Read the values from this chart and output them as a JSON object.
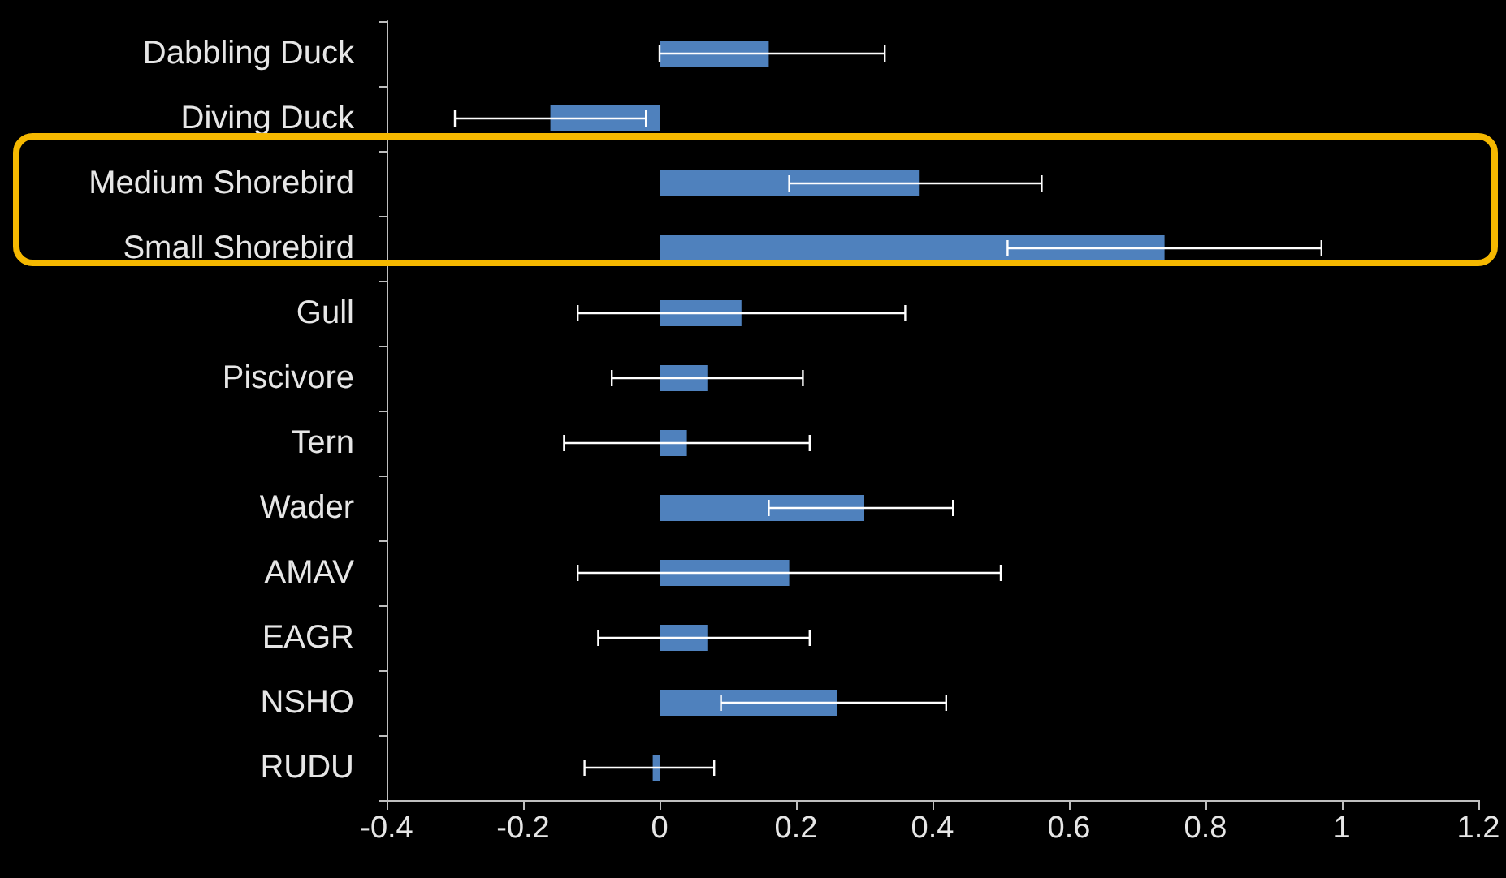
{
  "chart_data": {
    "type": "bar",
    "orientation": "horizontal",
    "categories": [
      "Dabbling Duck",
      "Diving Duck",
      "Medium Shorebird",
      "Small Shorebird",
      "Gull",
      "Piscivore",
      "Tern",
      "Wader",
      "AMAV",
      "EAGR",
      "NSHO",
      "RUDU"
    ],
    "values": [
      0.16,
      -0.16,
      0.38,
      0.74,
      0.12,
      0.07,
      0.04,
      0.3,
      0.19,
      0.07,
      0.26,
      -0.01
    ],
    "errors": [
      [
        0.0,
        0.33
      ],
      [
        -0.3,
        -0.02
      ],
      [
        0.19,
        0.56
      ],
      [
        0.51,
        0.97
      ],
      [
        -0.12,
        0.36
      ],
      [
        -0.07,
        0.21
      ],
      [
        -0.14,
        0.22
      ],
      [
        0.16,
        0.43
      ],
      [
        -0.12,
        0.5
      ],
      [
        -0.09,
        0.22
      ],
      [
        0.09,
        0.42
      ],
      [
        -0.11,
        0.08
      ]
    ],
    "color": "#4f81bd",
    "xlim": [
      -0.4,
      1.2
    ],
    "xticks": [
      -0.4,
      -0.2,
      0,
      0.2,
      0.4,
      0.6,
      0.8,
      1,
      1.2
    ],
    "grid": false
  }
}
